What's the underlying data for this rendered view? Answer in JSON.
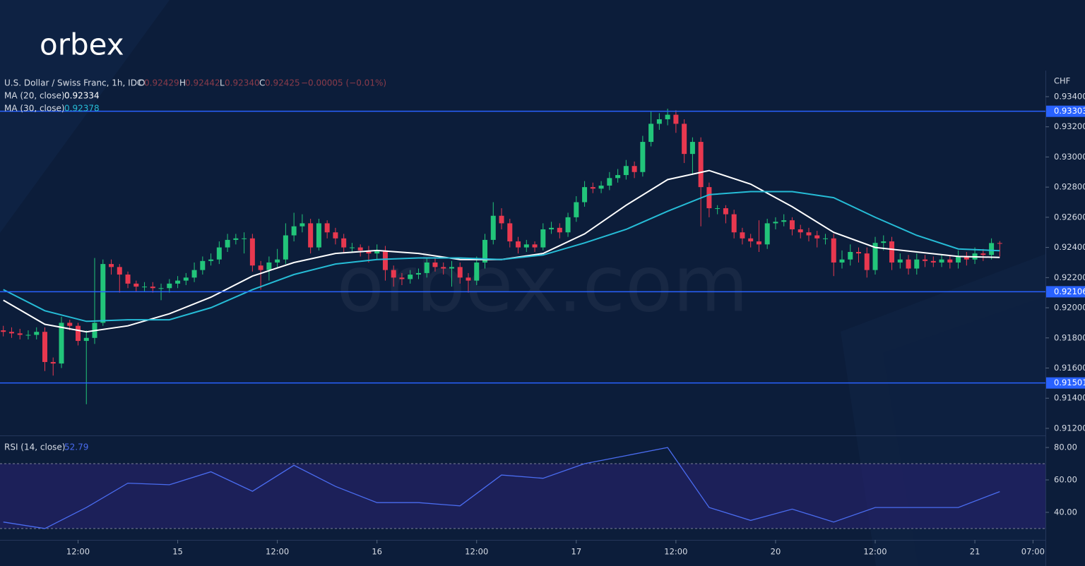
{
  "brand": {
    "logo": "orbex",
    "watermark": "orbex.com"
  },
  "chart_data": [
    {
      "type": "candlestick",
      "title": "U.S. Dollar / Swiss Franc, 1h, IDC",
      "ohlc": [
        {
          "label": "O",
          "value": "0.92429"
        },
        {
          "label": "H",
          "value": "0.92442"
        },
        {
          "label": "L",
          "value": "0.92340"
        },
        {
          "label": "C",
          "value": "0.92425"
        }
      ],
      "change": "−0.00005 (−0.01%)",
      "y_axis_label": "CHF",
      "up_color": "#22c57a",
      "down_color": "#e8384f",
      "xlim": [
        -0.4,
        125.5
      ],
      "xticks": [
        {
          "value": 9,
          "label": "12:00"
        },
        {
          "value": 21,
          "label": "15"
        },
        {
          "value": 33,
          "label": "12:00"
        },
        {
          "value": 45,
          "label": "16"
        },
        {
          "value": 57,
          "label": "12:00"
        },
        {
          "value": 69,
          "label": "17"
        },
        {
          "value": 81,
          "label": "12:00"
        },
        {
          "value": 93,
          "label": "20"
        },
        {
          "value": 105,
          "label": "12:00"
        },
        {
          "value": 117,
          "label": "21"
        },
        {
          "value": 124,
          "label": "07:00"
        }
      ],
      "ylim": [
        0.91153,
        0.93573
      ],
      "yticks": [
        {
          "value": 0.912,
          "label": "0.91200"
        },
        {
          "value": 0.914,
          "label": "0.91400"
        },
        {
          "value": 0.916,
          "label": "0.91600"
        },
        {
          "value": 0.918,
          "label": "0.91800"
        },
        {
          "value": 0.92,
          "label": "0.92000"
        },
        {
          "value": 0.922,
          "label": "0.92200"
        },
        {
          "value": 0.924,
          "label": "0.92400"
        },
        {
          "value": 0.926,
          "label": "0.92600"
        },
        {
          "value": 0.928,
          "label": "0.92800"
        },
        {
          "value": 0.93,
          "label": "0.93000"
        },
        {
          "value": 0.932,
          "label": "0.93200"
        },
        {
          "value": 0.934,
          "label": "0.93400"
        }
      ],
      "open": [
        0.9185,
        0.9184,
        0.9183,
        0.9182,
        0.9182,
        0.9184,
        0.9164,
        0.9163,
        0.919,
        0.9188,
        0.9178,
        0.918,
        0.919,
        0.9229,
        0.9227,
        0.9222,
        0.9216,
        0.9214,
        0.9214,
        0.9213,
        0.9213,
        0.9216,
        0.9218,
        0.922,
        0.9225,
        0.9231,
        0.9232,
        0.924,
        0.9245,
        0.9246,
        0.9246,
        0.9228,
        0.9225,
        0.923,
        0.9232,
        0.9248,
        0.9254,
        0.9256,
        0.924,
        0.9256,
        0.925,
        0.9246,
        0.924,
        0.924,
        0.9238,
        0.9236,
        0.9238,
        0.9225,
        0.922,
        0.9219,
        0.9222,
        0.9223,
        0.923,
        0.9227,
        0.9226,
        0.9227,
        0.922,
        0.9218,
        0.923,
        0.9245,
        0.9261,
        0.9256,
        0.9244,
        0.924,
        0.9242,
        0.924,
        0.9252,
        0.9253,
        0.925,
        0.926,
        0.927,
        0.928,
        0.9279,
        0.9281,
        0.9286,
        0.9288,
        0.9294,
        0.929,
        0.931,
        0.9322,
        0.9325,
        0.9328,
        0.9322,
        0.9302,
        0.931,
        0.928,
        0.9266,
        0.9266,
        0.9262,
        0.925,
        0.9246,
        0.9244,
        0.9242,
        0.9256,
        0.9257,
        0.9258,
        0.9252,
        0.925,
        0.9248,
        0.9246,
        0.9246,
        0.923,
        0.9232,
        0.9237,
        0.9236,
        0.9225,
        0.9243,
        0.9244,
        0.923,
        0.9232,
        0.9226,
        0.9232,
        0.9231,
        0.923,
        0.9232,
        0.923,
        0.9234,
        0.9232,
        0.9236,
        0.9235,
        0.92429
      ],
      "high": [
        0.9188,
        0.9187,
        0.9186,
        0.9185,
        0.9187,
        0.9187,
        0.9167,
        0.9194,
        0.9192,
        0.919,
        0.9185,
        0.9233,
        0.9232,
        0.9232,
        0.9229,
        0.9224,
        0.9218,
        0.9217,
        0.9217,
        0.9216,
        0.9219,
        0.9221,
        0.9223,
        0.923,
        0.9234,
        0.9236,
        0.9244,
        0.9249,
        0.9249,
        0.925,
        0.9249,
        0.9231,
        0.9234,
        0.9239,
        0.9256,
        0.9263,
        0.9262,
        0.9259,
        0.9259,
        0.9258,
        0.9253,
        0.9249,
        0.9243,
        0.9242,
        0.9241,
        0.9242,
        0.9241,
        0.9228,
        0.9223,
        0.9225,
        0.9226,
        0.9233,
        0.9233,
        0.923,
        0.9231,
        0.923,
        0.9223,
        0.9234,
        0.9249,
        0.927,
        0.9266,
        0.9259,
        0.9247,
        0.9245,
        0.9244,
        0.9256,
        0.9257,
        0.9256,
        0.9263,
        0.9274,
        0.9284,
        0.9283,
        0.9284,
        0.929,
        0.9292,
        0.9298,
        0.9297,
        0.9314,
        0.933,
        0.9329,
        0.9332,
        0.9331,
        0.9325,
        0.9313,
        0.9313,
        0.9283,
        0.9268,
        0.9268,
        0.9265,
        0.9253,
        0.9249,
        0.9258,
        0.9259,
        0.926,
        0.9262,
        0.926,
        0.9255,
        0.9253,
        0.9251,
        0.9249,
        0.9249,
        0.9238,
        0.9242,
        0.924,
        0.924,
        0.9247,
        0.9248,
        0.9247,
        0.9236,
        0.9235,
        0.9236,
        0.9235,
        0.9234,
        0.9235,
        0.9235,
        0.9238,
        0.9237,
        0.924,
        0.9239,
        0.9246,
        0.92442
      ],
      "low": [
        0.9181,
        0.918,
        0.9179,
        0.9179,
        0.9179,
        0.9158,
        0.9155,
        0.916,
        0.9185,
        0.9175,
        0.9136,
        0.9176,
        0.9188,
        0.9222,
        0.921,
        0.9213,
        0.9211,
        0.9211,
        0.921,
        0.9205,
        0.921,
        0.9213,
        0.9215,
        0.9217,
        0.9222,
        0.9228,
        0.9229,
        0.9237,
        0.9242,
        0.9236,
        0.9224,
        0.9212,
        0.9218,
        0.9226,
        0.9229,
        0.9244,
        0.925,
        0.9236,
        0.9238,
        0.9246,
        0.9242,
        0.9236,
        0.9237,
        0.9234,
        0.923,
        0.9232,
        0.9218,
        0.9214,
        0.9215,
        0.9216,
        0.9219,
        0.922,
        0.9224,
        0.9222,
        0.9214,
        0.9216,
        0.921,
        0.9215,
        0.9226,
        0.9242,
        0.9252,
        0.924,
        0.9236,
        0.9237,
        0.9237,
        0.9238,
        0.9249,
        0.9246,
        0.9247,
        0.9257,
        0.9267,
        0.9276,
        0.9276,
        0.9278,
        0.9283,
        0.9285,
        0.9286,
        0.9287,
        0.9307,
        0.9318,
        0.9321,
        0.9316,
        0.9296,
        0.9288,
        0.9254,
        0.926,
        0.9262,
        0.9256,
        0.9246,
        0.9242,
        0.924,
        0.9237,
        0.9239,
        0.9252,
        0.9254,
        0.9248,
        0.9246,
        0.9244,
        0.924,
        0.9242,
        0.9221,
        0.9226,
        0.9228,
        0.923,
        0.922,
        0.9222,
        0.9238,
        0.9225,
        0.9226,
        0.9222,
        0.9222,
        0.9227,
        0.9227,
        0.9227,
        0.9226,
        0.9226,
        0.9228,
        0.9229,
        0.9231,
        0.9232,
        0.9234
      ],
      "close": [
        0.9184,
        0.9183,
        0.9182,
        0.9182,
        0.9184,
        0.9164,
        0.9163,
        0.919,
        0.9188,
        0.9178,
        0.918,
        0.919,
        0.9229,
        0.9227,
        0.9222,
        0.9216,
        0.9214,
        0.9214,
        0.9213,
        0.9213,
        0.9216,
        0.9218,
        0.922,
        0.9225,
        0.9231,
        0.9232,
        0.924,
        0.9245,
        0.9246,
        0.9246,
        0.9228,
        0.9225,
        0.923,
        0.9232,
        0.9248,
        0.9254,
        0.9256,
        0.924,
        0.9256,
        0.925,
        0.9246,
        0.924,
        0.924,
        0.9238,
        0.9236,
        0.9238,
        0.9225,
        0.922,
        0.9219,
        0.9222,
        0.9223,
        0.923,
        0.9227,
        0.9226,
        0.9227,
        0.922,
        0.9218,
        0.923,
        0.9245,
        0.9261,
        0.9256,
        0.9244,
        0.924,
        0.9242,
        0.924,
        0.9252,
        0.9253,
        0.925,
        0.926,
        0.927,
        0.928,
        0.9279,
        0.9281,
        0.9286,
        0.9288,
        0.9294,
        0.929,
        0.931,
        0.9322,
        0.9325,
        0.9328,
        0.9322,
        0.9302,
        0.931,
        0.928,
        0.9266,
        0.9266,
        0.9262,
        0.925,
        0.9246,
        0.9244,
        0.9242,
        0.9256,
        0.9257,
        0.9258,
        0.9252,
        0.925,
        0.9248,
        0.9246,
        0.9246,
        0.923,
        0.9232,
        0.9237,
        0.9236,
        0.9225,
        0.9243,
        0.9244,
        0.923,
        0.9232,
        0.9226,
        0.9232,
        0.9231,
        0.923,
        0.9232,
        0.923,
        0.9234,
        0.9232,
        0.9236,
        0.9235,
        0.92429,
        0.92425
      ],
      "series": [
        {
          "name": "MA (20, close)",
          "value_label": "0.92334",
          "color": "#ffffff",
          "x": [
            0,
            5,
            10,
            15,
            20,
            25,
            30,
            35,
            40,
            45,
            50,
            55,
            60,
            65,
            70,
            75,
            80,
            85,
            90,
            95,
            100,
            105,
            110,
            115,
            120
          ],
          "values": [
            0.9205,
            0.9189,
            0.9184,
            0.9188,
            0.9196,
            0.9207,
            0.9221,
            0.923,
            0.9236,
            0.9238,
            0.9236,
            0.9232,
            0.9232,
            0.9236,
            0.9249,
            0.9268,
            0.9285,
            0.9291,
            0.9282,
            0.9267,
            0.925,
            0.924,
            0.9237,
            0.9234,
            0.92334
          ]
        },
        {
          "name": "MA (30, close)",
          "value_label": "0.92378",
          "color": "#26bcd6",
          "x": [
            0,
            5,
            10,
            15,
            20,
            25,
            30,
            35,
            40,
            45,
            50,
            55,
            60,
            65,
            70,
            75,
            80,
            85,
            90,
            95,
            100,
            105,
            110,
            115,
            120
          ],
          "values": [
            0.9212,
            0.9198,
            0.9191,
            0.9192,
            0.9192,
            0.92,
            0.9212,
            0.9222,
            0.9229,
            0.9232,
            0.9233,
            0.9233,
            0.9232,
            0.9235,
            0.9243,
            0.9252,
            0.9264,
            0.9275,
            0.9277,
            0.9277,
            0.9273,
            0.926,
            0.9248,
            0.9239,
            0.92378
          ]
        }
      ],
      "levels": [
        {
          "value": 0.93303,
          "color": "#2962ff"
        },
        {
          "value": 0.92106,
          "color": "#2962ff"
        },
        {
          "value": 0.91501,
          "color": "#2962ff"
        }
      ]
    },
    {
      "type": "line",
      "title": "RSI (14, close)",
      "value_label": "52.79",
      "xlim": [
        -0.4,
        125.5
      ],
      "ylim": [
        23,
        87
      ],
      "yticks": [
        {
          "value": 40,
          "label": "40.00"
        },
        {
          "value": 60,
          "label": "60.00"
        },
        {
          "value": 80,
          "label": "80.00"
        }
      ],
      "band": [
        30,
        70
      ],
      "series": [
        {
          "color": "#4a6cf0",
          "x": [
            0,
            5,
            10,
            15,
            20,
            25,
            30,
            35,
            40,
            45,
            50,
            55,
            60,
            65,
            70,
            75,
            80,
            85,
            90,
            95,
            100,
            105,
            110,
            115,
            120
          ],
          "values": [
            34,
            30,
            43,
            58,
            57,
            65,
            53,
            69,
            56,
            46,
            46,
            44,
            63,
            61,
            70,
            75,
            80,
            43,
            35,
            42,
            34,
            43,
            43,
            43,
            52.79
          ]
        }
      ]
    }
  ]
}
